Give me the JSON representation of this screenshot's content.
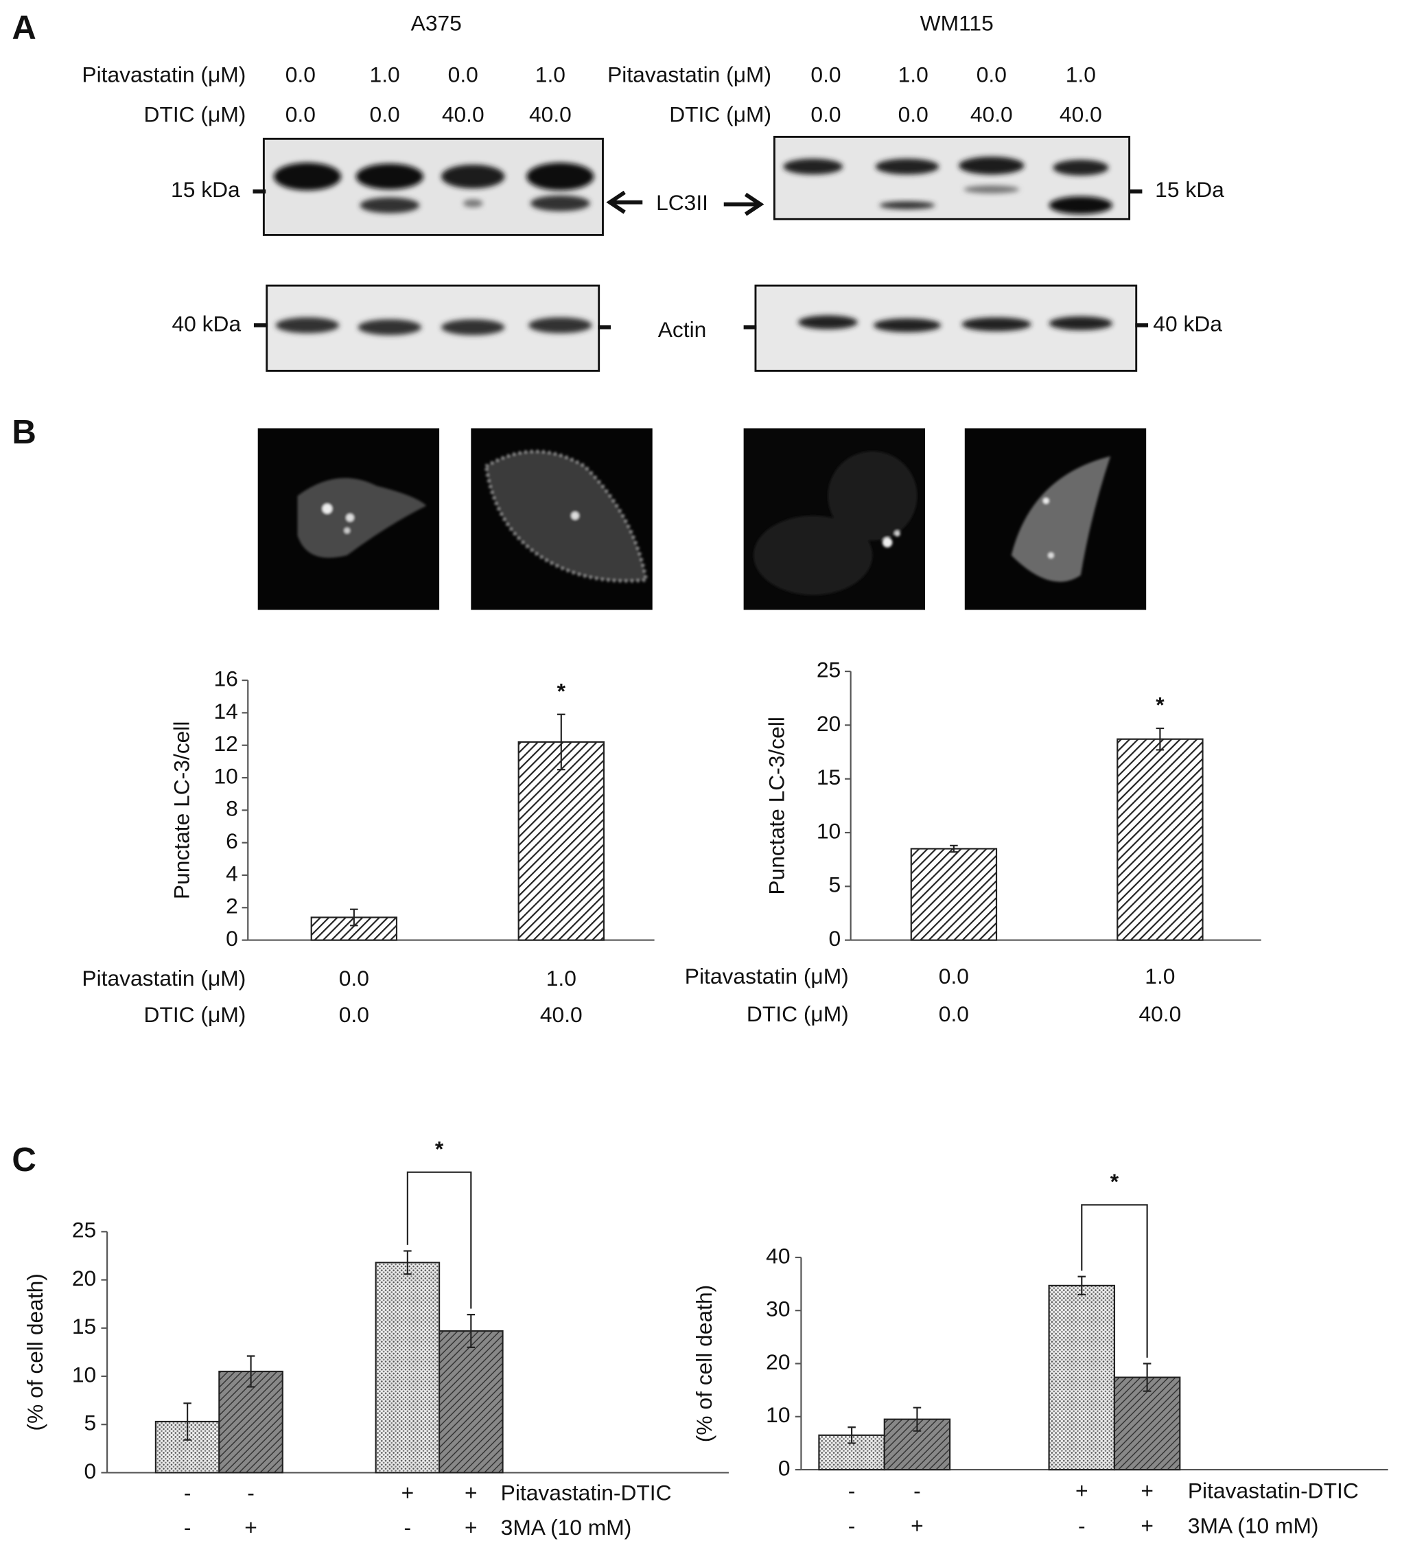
{
  "panel_a": {
    "label": "A",
    "groups": [
      {
        "title": "A375",
        "rows": [
          {
            "label": "Pitavastatin (μM)",
            "values": [
              "0.0",
              "1.0",
              "0.0",
              "1.0"
            ]
          },
          {
            "label": "DTIC (μM)",
            "values": [
              "0.0",
              "0.0",
              "40.0",
              "40.0"
            ]
          }
        ],
        "markers": [
          "15 kDa",
          "40 kDa"
        ]
      },
      {
        "title": "WM115",
        "rows": [
          {
            "label": "Pitavastatin (μM)",
            "values": [
              "0.0",
              "1.0",
              "0.0",
              "1.0"
            ]
          },
          {
            "label": "DTIC (μM)",
            "values": [
              "0.0",
              "0.0",
              "40.0",
              "40.0"
            ]
          }
        ],
        "markers": [
          "15 kDa",
          "40 kDa"
        ]
      }
    ],
    "band_labels": [
      "LC3II",
      "Actin"
    ]
  },
  "panel_b": {
    "label": "B"
  },
  "panel_c": {
    "label": "C"
  },
  "chart_data": [
    {
      "type": "bar",
      "y_label": "Punctate LC-3/cell",
      "categories": [
        null,
        null
      ],
      "values": [
        1.4,
        12.2
      ],
      "errors": [
        0.5,
        1.7
      ],
      "annotations": [
        null,
        "*"
      ],
      "fills": [
        "hatch",
        "hatch"
      ],
      "ylim": [
        0,
        16
      ],
      "yticks": [
        0,
        2,
        4,
        6,
        8,
        10,
        12,
        14,
        16
      ],
      "grid": false,
      "treatments": [
        {
          "label": "Pitavastatin (μM)",
          "values": [
            "0.0",
            "1.0"
          ]
        },
        {
          "label": "DTIC (μM)",
          "values": [
            "0.0",
            "40.0"
          ]
        }
      ]
    },
    {
      "type": "bar",
      "y_label": "Punctate LC-3/cell",
      "categories": [
        null,
        null
      ],
      "values": [
        8.5,
        18.7
      ],
      "errors": [
        0.3,
        1.0
      ],
      "annotations": [
        null,
        "*"
      ],
      "fills": [
        "hatch",
        "hatch"
      ],
      "ylim": [
        0,
        25
      ],
      "yticks": [
        0,
        5,
        10,
        15,
        20,
        25
      ],
      "grid": false,
      "treatments": [
        {
          "label": "Pitavastatin (μM)",
          "values": [
            "0.0",
            "1.0"
          ]
        },
        {
          "label": "DTIC (μM)",
          "values": [
            "0.0",
            "40.0"
          ]
        }
      ]
    },
    {
      "type": "bar",
      "y_label": "(% of cell death)",
      "categories": [
        null,
        null,
        null,
        null
      ],
      "values": [
        5.3,
        10.5,
        21.8,
        14.7
      ],
      "errors": [
        1.9,
        1.6,
        1.2,
        1.7
      ],
      "significance": "*",
      "fills": [
        "dots",
        "hatch-dark",
        "dots",
        "hatch-dark"
      ],
      "ylim": [
        0,
        25
      ],
      "yticks": [
        0,
        5,
        10,
        15,
        20,
        25
      ],
      "grid": false,
      "treatments": [
        {
          "label": "Pitavastatin-DTIC",
          "values": [
            "-",
            "-",
            "+",
            "+"
          ]
        },
        {
          "label": "3MA (10 mM)",
          "values": [
            "-",
            "+",
            "-",
            "+"
          ]
        }
      ]
    },
    {
      "type": "bar",
      "y_label": "(% of cell death)",
      "categories": [
        null,
        null,
        null,
        null
      ],
      "values": [
        6.5,
        9.5,
        34.7,
        17.4
      ],
      "errors": [
        1.5,
        2.2,
        1.7,
        2.6
      ],
      "significance": "*",
      "fills": [
        "dots",
        "hatch-dark",
        "dots",
        "hatch-dark"
      ],
      "ylim": [
        0,
        40
      ],
      "yticks": [
        0,
        10,
        20,
        30,
        40
      ],
      "grid": false,
      "treatments": [
        {
          "label": "Pitavastatin-DTIC",
          "values": [
            "-",
            "-",
            "+",
            "+"
          ]
        },
        {
          "label": "3MA (10 mM)",
          "values": [
            "-",
            "+",
            "-",
            "+"
          ]
        }
      ]
    }
  ]
}
